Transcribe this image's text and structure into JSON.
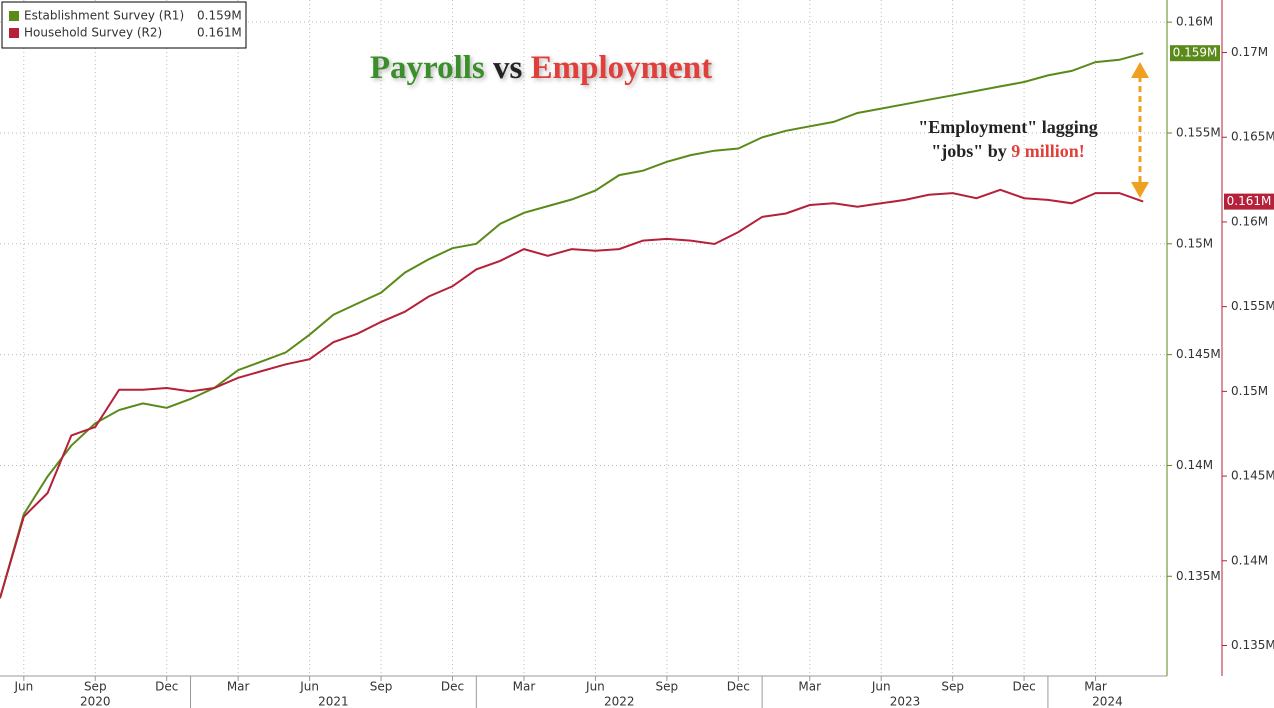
{
  "chart_data": {
    "type": "line",
    "title_parts": [
      {
        "text": "Payrolls",
        "color": "#3a8f2a"
      },
      {
        "text": "vs",
        "color": "#222222"
      },
      {
        "text": "Employment",
        "color": "#e0403a"
      }
    ],
    "annotation": {
      "lines": [
        "\"Employment\" lagging",
        "\"jobs\" by"
      ],
      "highlight": "9 million!",
      "highlight_color": "#e0403a"
    },
    "x": [
      "2020-05",
      "2020-06",
      "2020-07",
      "2020-08",
      "2020-09",
      "2020-10",
      "2020-11",
      "2020-12",
      "2021-01",
      "2021-02",
      "2021-03",
      "2021-04",
      "2021-05",
      "2021-06",
      "2021-07",
      "2021-08",
      "2021-09",
      "2021-10",
      "2021-11",
      "2021-12",
      "2022-01",
      "2022-02",
      "2022-03",
      "2022-04",
      "2022-05",
      "2022-06",
      "2022-07",
      "2022-08",
      "2022-09",
      "2022-10",
      "2022-11",
      "2022-12",
      "2023-01",
      "2023-02",
      "2023-03",
      "2023-04",
      "2023-05",
      "2023-06",
      "2023-07",
      "2023-08",
      "2023-09",
      "2023-10",
      "2023-11",
      "2023-12",
      "2024-01",
      "2024-02",
      "2024-03",
      "2024-04",
      "2024-05"
    ],
    "xlim": [
      "2020-05",
      "2024-06"
    ],
    "xticks": [
      {
        "value": "2020-06",
        "label": "Jun"
      },
      {
        "value": "2020-09",
        "label": "Sep"
      },
      {
        "value": "2020-12",
        "label": "Dec"
      },
      {
        "value": "2021-03",
        "label": "Mar"
      },
      {
        "value": "2021-06",
        "label": "Jun"
      },
      {
        "value": "2021-09",
        "label": "Sep"
      },
      {
        "value": "2021-12",
        "label": "Dec"
      },
      {
        "value": "2022-03",
        "label": "Mar"
      },
      {
        "value": "2022-06",
        "label": "Jun"
      },
      {
        "value": "2022-09",
        "label": "Sep"
      },
      {
        "value": "2022-12",
        "label": "Dec"
      },
      {
        "value": "2023-03",
        "label": "Mar"
      },
      {
        "value": "2023-06",
        "label": "Jun"
      },
      {
        "value": "2023-09",
        "label": "Sep"
      },
      {
        "value": "2023-12",
        "label": "Dec"
      },
      {
        "value": "2024-03",
        "label": "Mar"
      }
    ],
    "years": [
      "2020",
      "2021",
      "2022",
      "2023",
      "2024"
    ],
    "ylim": [
      0.1305,
      0.161
    ],
    "yticks": [
      {
        "value": 0.135,
        "label": "0.135M"
      },
      {
        "value": 0.14,
        "label": "0.14M"
      },
      {
        "value": 0.145,
        "label": "0.145M"
      },
      {
        "value": 0.15,
        "label": "0.15M"
      },
      {
        "value": 0.155,
        "label": "0.155M"
      },
      {
        "value": 0.16,
        "label": "0.16M"
      }
    ],
    "y2lim": [
      0.1332,
      0.1731
    ],
    "y2ticks": [
      {
        "value": 0.135,
        "label": "0.135M"
      },
      {
        "value": 0.14,
        "label": "0.14M"
      },
      {
        "value": 0.145,
        "label": "0.145M"
      },
      {
        "value": 0.15,
        "label": "0.15M"
      },
      {
        "value": 0.155,
        "label": "0.155M"
      },
      {
        "value": 0.16,
        "label": "0.16M"
      },
      {
        "value": 0.165,
        "label": "0.165M"
      },
      {
        "value": 0.17,
        "label": "0.17M"
      }
    ],
    "grid": true,
    "legend": "upper left",
    "series": [
      {
        "name": "Establishment Survey (R1)",
        "color": "#5a8a1a",
        "axis": "y",
        "values": [
          0.134,
          0.1378,
          0.1395,
          0.1409,
          0.1419,
          0.1425,
          0.1428,
          0.1426,
          0.143,
          0.1435,
          0.1443,
          0.1447,
          0.1451,
          0.1459,
          0.1468,
          0.1473,
          0.1478,
          0.1487,
          0.1493,
          0.1498,
          0.15,
          0.1509,
          0.1514,
          0.1517,
          0.152,
          0.1524,
          0.1531,
          0.1533,
          0.1537,
          0.154,
          0.1542,
          0.1543,
          0.1548,
          0.1551,
          0.1553,
          0.1555,
          0.1559,
          0.1561,
          0.1563,
          0.1565,
          0.1567,
          0.1569,
          0.1571,
          0.1573,
          0.1576,
          0.1578,
          0.1582,
          0.1583,
          0.1586
        ],
        "value_labels": [
          null,
          null,
          null,
          null,
          null,
          null,
          null,
          null,
          null,
          null,
          null,
          null,
          null,
          null,
          null,
          null,
          null,
          null,
          null,
          null,
          null,
          null,
          null,
          null,
          null,
          null,
          null,
          null,
          null,
          null,
          null,
          null,
          null,
          null,
          null,
          null,
          null,
          null,
          null,
          null,
          null,
          null,
          null,
          null,
          null,
          null,
          null,
          null,
          "0.159M"
        ]
      },
      {
        "name": "Household Survey (R2)",
        "color": "#b5203a",
        "axis": "y2",
        "values": [
          0.1378,
          0.1426,
          0.144,
          0.1474,
          0.1479,
          0.1501,
          0.1501,
          0.1502,
          0.15,
          0.1502,
          0.1508,
          0.1512,
          0.1516,
          0.1519,
          0.1529,
          0.1534,
          0.1541,
          0.1547,
          0.1556,
          0.1562,
          0.1572,
          0.1577,
          0.1584,
          0.158,
          0.1584,
          0.1583,
          0.1584,
          0.1589,
          0.159,
          0.1589,
          0.1587,
          0.1594,
          0.1603,
          0.1605,
          0.161,
          0.1611,
          0.1609,
          0.1611,
          0.1613,
          0.1616,
          0.1617,
          0.1614,
          0.1619,
          0.1614,
          0.1613,
          0.1611,
          0.1617,
          0.1617,
          0.1612
        ],
        "value_labels": [
          null,
          null,
          null,
          null,
          null,
          null,
          null,
          null,
          null,
          null,
          null,
          null,
          null,
          null,
          null,
          null,
          null,
          null,
          null,
          null,
          null,
          null,
          null,
          null,
          null,
          null,
          null,
          null,
          null,
          null,
          null,
          null,
          null,
          null,
          null,
          null,
          null,
          null,
          null,
          null,
          null,
          null,
          null,
          null,
          null,
          null,
          null,
          null,
          "0.161M"
        ]
      }
    ]
  }
}
